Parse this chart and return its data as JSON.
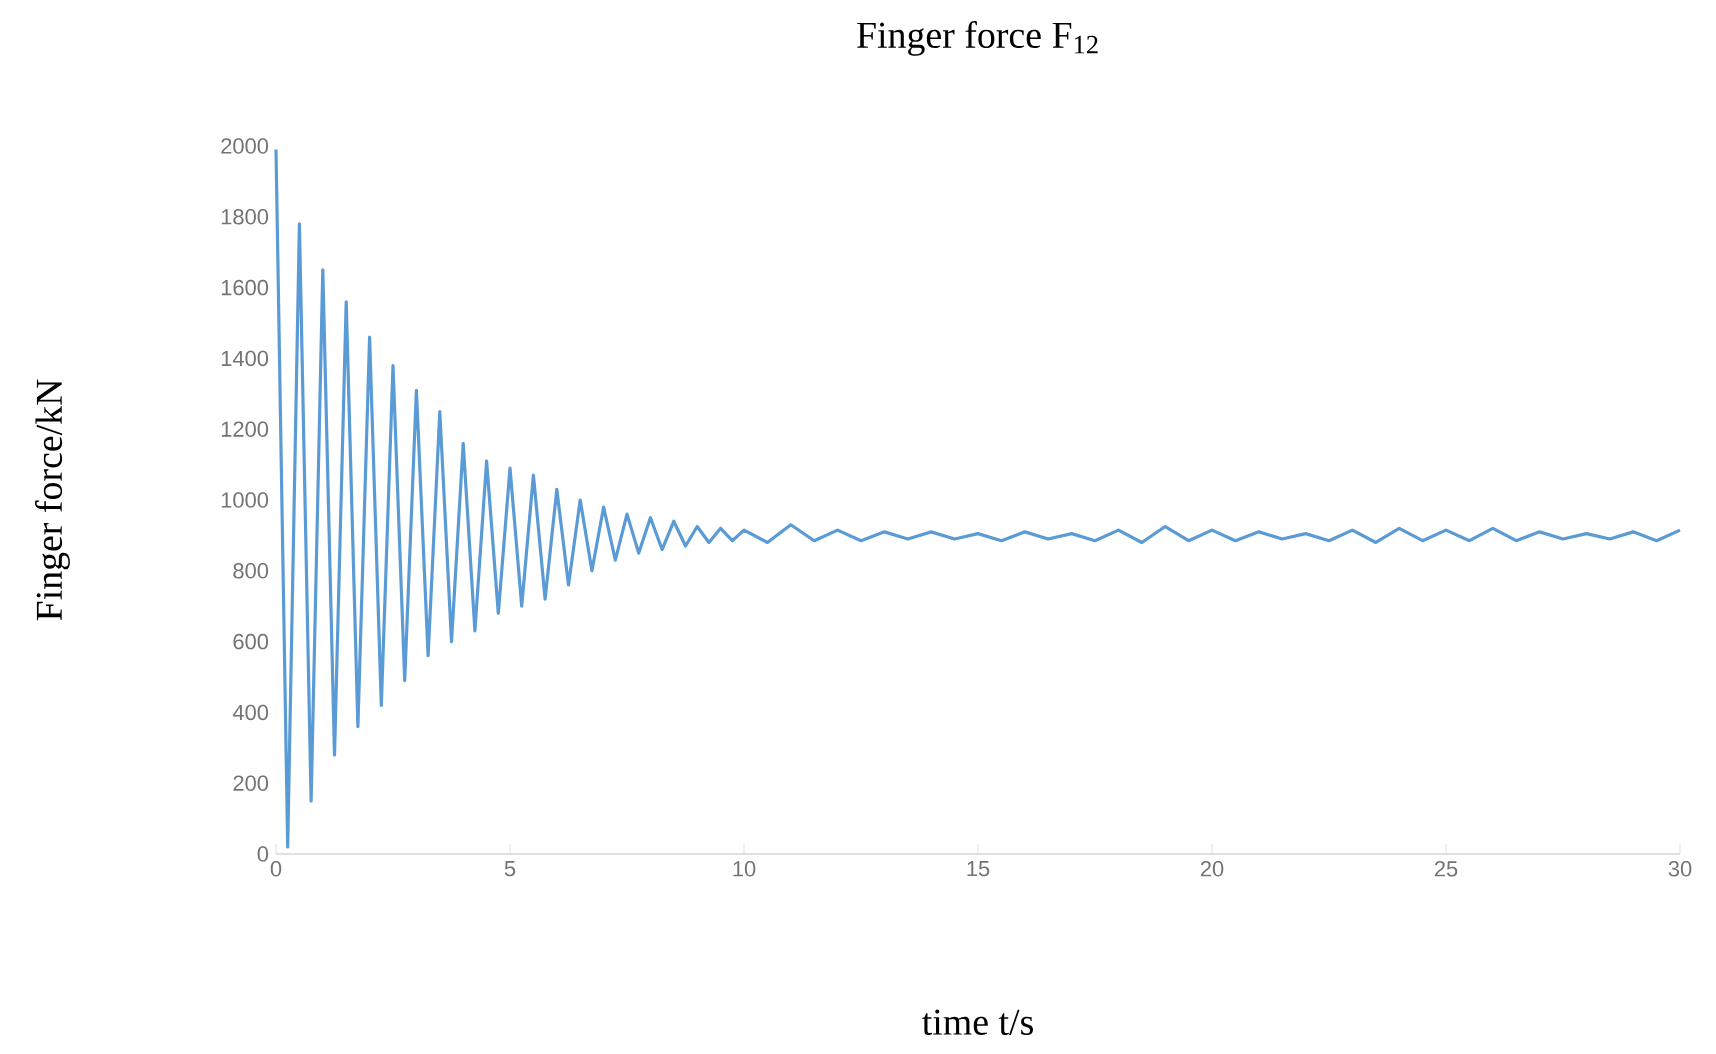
{
  "chart_data": {
    "type": "line",
    "title": "Finger force F$_{12}$",
    "xlabel": "time t/s",
    "ylabel": "Finger force/kN",
    "xlim": [
      0,
      30
    ],
    "ylim": [
      0,
      2000
    ],
    "xticks": [
      0,
      5,
      10,
      15,
      20,
      25,
      30
    ],
    "yticks": [
      0,
      200,
      400,
      600,
      800,
      1000,
      1200,
      1400,
      1600,
      1800,
      2000
    ],
    "grid": false,
    "series": [
      {
        "color": "#5b9bd5",
        "x": [
          0,
          0.25,
          0.5,
          0.75,
          1,
          1.25,
          1.5,
          1.75,
          2,
          2.25,
          2.5,
          2.75,
          3,
          3.25,
          3.5,
          3.75,
          4,
          4.25,
          4.5,
          4.75,
          5,
          5.25,
          5.5,
          5.75,
          6,
          6.25,
          6.5,
          6.75,
          7,
          7.25,
          7.5,
          7.75,
          8,
          8.25,
          8.5,
          8.75,
          9,
          9.25,
          9.5,
          9.75,
          10,
          10.5,
          11,
          11.5,
          12,
          12.5,
          13,
          13.5,
          14,
          14.5,
          15,
          15.5,
          16,
          16.5,
          17,
          17.5,
          18,
          18.5,
          19,
          19.5,
          20,
          20.5,
          21,
          21.5,
          22,
          22.5,
          23,
          23.5,
          24,
          24.5,
          25,
          25.5,
          26,
          26.5,
          27,
          27.5,
          28,
          28.5,
          29,
          29.5,
          30
        ],
        "values": [
          1990,
          20,
          1780,
          150,
          1650,
          280,
          1560,
          360,
          1460,
          420,
          1380,
          490,
          1310,
          560,
          1250,
          600,
          1160,
          630,
          1110,
          680,
          1090,
          700,
          1070,
          720,
          1030,
          760,
          1000,
          800,
          980,
          830,
          960,
          850,
          950,
          860,
          940,
          870,
          925,
          880,
          920,
          885,
          915,
          880,
          930,
          885,
          915,
          885,
          910,
          890,
          910,
          890,
          905,
          885,
          910,
          890,
          905,
          885,
          915,
          880,
          925,
          885,
          915,
          885,
          910,
          890,
          905,
          885,
          915,
          880,
          920,
          885,
          915,
          885,
          920,
          885,
          910,
          890,
          905,
          890,
          910,
          885,
          915
        ]
      }
    ]
  }
}
